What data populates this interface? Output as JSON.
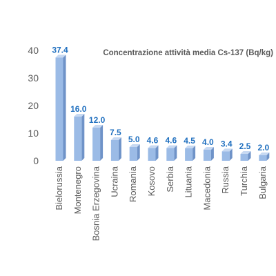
{
  "chart_data": {
    "type": "bar",
    "title": "Concentrazione attività media Cs-137 (Bq/kg)",
    "xlabel": "",
    "ylabel": "",
    "ylim": [
      0,
      40
    ],
    "yticks": [
      0,
      10,
      20,
      30,
      40
    ],
    "grid": false,
    "legend": "none",
    "categories": [
      "Bielorussia",
      "Montenegro",
      "Bosnia Erzegovina",
      "Ucraina",
      "Romania",
      "Kosovo",
      "Serbia",
      "Lituania",
      "Macedonia",
      "Russia",
      "Turchia",
      "Bulgaria"
    ],
    "values": [
      37.4,
      16.0,
      12.0,
      7.5,
      5.0,
      4.6,
      4.6,
      4.5,
      4.0,
      3.4,
      2.5,
      2.0
    ],
    "value_labels": [
      "37.4",
      "16.0",
      "12.0",
      "7.5",
      "5.0",
      "4.6",
      "4.6",
      "4.5",
      "4.0",
      "3.4",
      "2.5",
      "2.0"
    ]
  },
  "colors": {
    "bar_front": "#9bbbe6",
    "bar_side": "#6f93c8",
    "bar_top": "#c7d9f2",
    "data_label": "#1f6fbf",
    "title": "#595959",
    "axis_text": "#595959"
  }
}
